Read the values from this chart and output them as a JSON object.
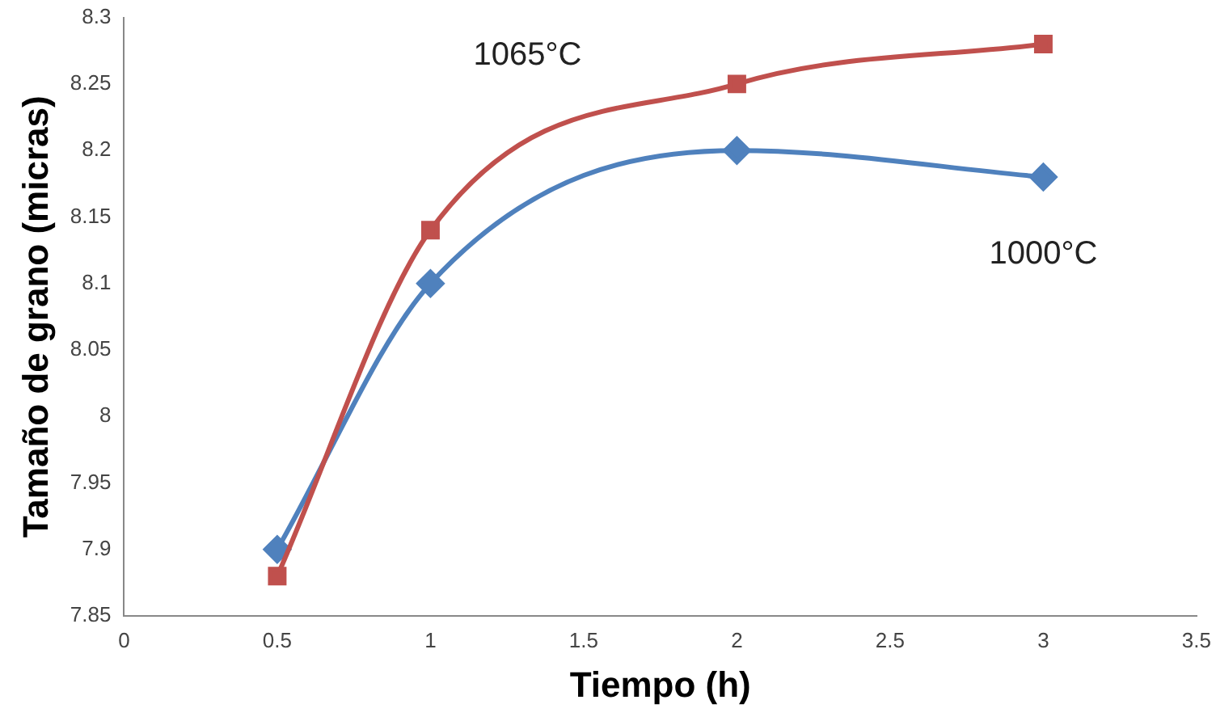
{
  "chart_data": {
    "type": "line",
    "xlabel": "Tiempo (h)",
    "ylabel": "Tamaño de grano (micras)",
    "series": [
      {
        "name": "1065°C",
        "color": "#c0504d",
        "marker": "square",
        "x": [
          0.5,
          1,
          2,
          3
        ],
        "values": [
          7.88,
          8.14,
          8.25,
          8.28
        ]
      },
      {
        "name": "1000°C",
        "color": "#4f81bd",
        "marker": "diamond",
        "x": [
          0.5,
          1,
          2,
          3
        ],
        "values": [
          7.9,
          8.1,
          8.2,
          8.18
        ]
      }
    ],
    "xlim": [
      0,
      3.5
    ],
    "xticks": [
      0,
      0.5,
      1,
      1.5,
      2,
      2.5,
      3,
      3.5
    ],
    "ylim": [
      7.85,
      8.3
    ],
    "yticks": [
      7.85,
      7.9,
      7.95,
      8,
      8.05,
      8.1,
      8.15,
      8.2,
      8.25,
      8.3
    ],
    "grid": false,
    "legend": false
  }
}
